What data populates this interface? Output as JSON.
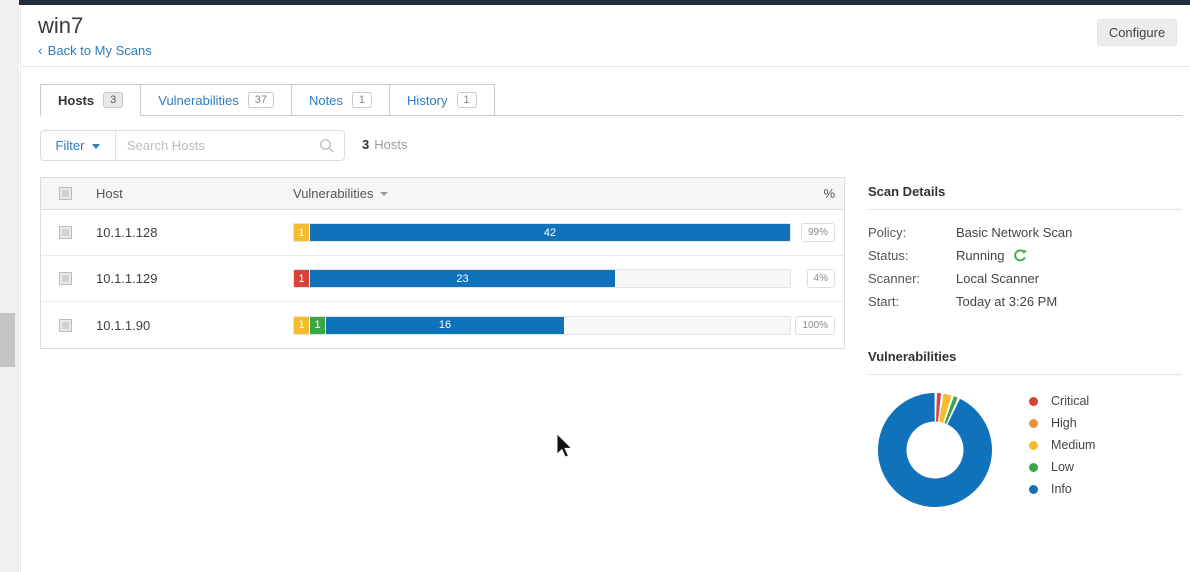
{
  "header": {
    "title": "win7",
    "back_chevron": "‹",
    "back_label": "Back to My Scans",
    "configure_label": "Configure"
  },
  "tabs": [
    {
      "label": "Hosts",
      "count": "3",
      "active": true
    },
    {
      "label": "Vulnerabilities",
      "count": "37",
      "active": false
    },
    {
      "label": "Notes",
      "count": "1",
      "active": false
    },
    {
      "label": "History",
      "count": "1",
      "active": false
    }
  ],
  "filter": {
    "button_label": "Filter",
    "search_placeholder": "Search Hosts",
    "result_count": "3",
    "result_noun": "Hosts"
  },
  "hosts_table": {
    "columns": {
      "host": "Host",
      "vulnerabilities": "Vulnerabilities",
      "percent": "%"
    },
    "rows": [
      {
        "host": "10.1.1.128",
        "percent": "99%",
        "bar_fill_pct": 100,
        "segments": [
          {
            "severity": "medium",
            "count": 1
          },
          {
            "severity": "info",
            "count": 42
          }
        ]
      },
      {
        "host": "10.1.1.129",
        "percent": "4%",
        "bar_fill_pct": 64.4,
        "segments": [
          {
            "severity": "critical",
            "count": 1
          },
          {
            "severity": "info",
            "count": 23
          }
        ]
      },
      {
        "host": "10.1.1.90",
        "percent": "100%",
        "bar_fill_pct": 54.2,
        "segments": [
          {
            "severity": "medium",
            "count": 1
          },
          {
            "severity": "low",
            "count": 1
          },
          {
            "severity": "info",
            "count": 16
          }
        ]
      }
    ]
  },
  "scan_details": {
    "title": "Scan Details",
    "fields": [
      {
        "label": "Policy:",
        "value": "Basic Network Scan"
      },
      {
        "label": "Status:",
        "value": "Running",
        "icon": "refresh-icon"
      },
      {
        "label": "Scanner:",
        "value": "Local Scanner"
      },
      {
        "label": "Start:",
        "value": "Today at 3:26 PM"
      }
    ]
  },
  "vulns_panel": {
    "title": "Vulnerabilities"
  },
  "severity_colors": {
    "critical": "#d9423b",
    "high": "#ef9234",
    "medium": "#f5bc30",
    "low": "#3ca647",
    "info": "#1172bc"
  },
  "chart_data": {
    "type": "pie",
    "donut": true,
    "title": "Vulnerabilities",
    "categories": [
      "Critical",
      "High",
      "Medium",
      "Low",
      "Info"
    ],
    "values": [
      1,
      0,
      2,
      1,
      81
    ],
    "colors": [
      "#d9423b",
      "#ef9234",
      "#f5bc30",
      "#3ca647",
      "#1172bc"
    ],
    "legend_position": "right",
    "labels_shown": false
  }
}
